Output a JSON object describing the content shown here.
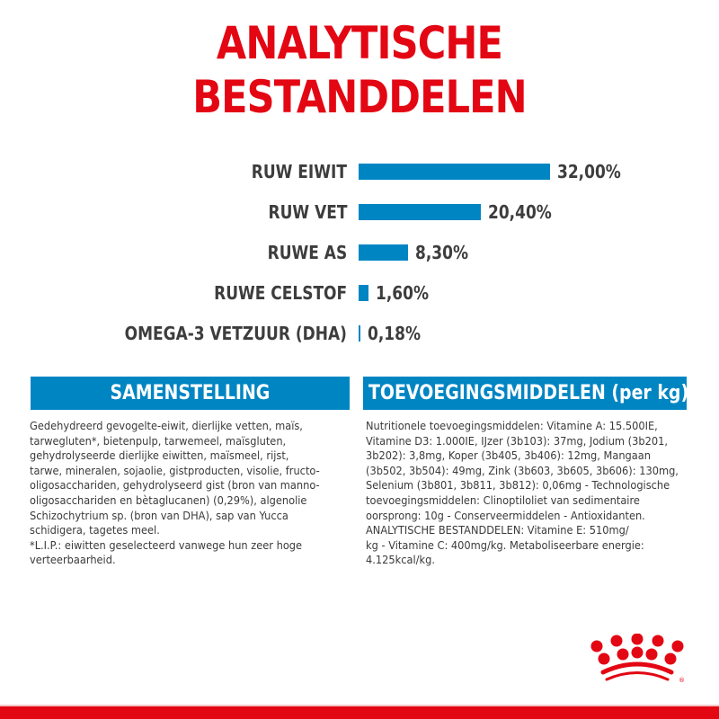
{
  "title": "ANALYTISCHE BESTANDDELEN",
  "colors": {
    "title_red": "#e30613",
    "bar_blue": "#0085c3",
    "header_blue": "#0085c3",
    "text_dark": "#3d3d3d",
    "footer_red": "#e30613"
  },
  "chart_data": {
    "type": "bar",
    "orientation": "horizontal",
    "title": "ANALYTISCHE BESTANDDELEN",
    "xlabel": "",
    "ylabel": "",
    "categories": [
      "RUW EIWIT",
      "RUW VET",
      "RUWE AS",
      "RUWE CELSTOF",
      "OMEGA-3 VETZUUR (DHA)"
    ],
    "values": [
      32.0,
      20.4,
      8.3,
      1.6,
      0.18
    ],
    "value_labels": [
      "32,00%",
      "20,40%",
      "8,30%",
      "1,60%",
      "0,18%"
    ],
    "unit": "%",
    "grid": false,
    "legend": null
  },
  "rows": [
    {
      "label": "RUW EIWIT",
      "value": "32,00%"
    },
    {
      "label": "RUW VET",
      "value": "20,40%"
    },
    {
      "label": "RUWE AS",
      "value": "8,30%"
    },
    {
      "label": "RUWE CELSTOF",
      "value": "1,60%"
    },
    {
      "label": "OMEGA-3 VETZUUR (DHA)",
      "value": "0,18%"
    }
  ],
  "samenstelling": {
    "header": "SAMENSTELLING",
    "text": "Gedehydreerd gevogelte-eiwit, dierlijke vetten, maïs,\ntarwegluten*, bietenpulp, tarwemeel, maïsgluten,\ngehydrolyseerde dierlijke eiwitten, maïsmeel, rijst,\ntarwe, mineralen, sojaolie, gistproducten, visolie, fructo-\noligosacchariden, gehydrolyseerd gist (bron van manno-\noligosacchariden en bètaglucanen) (0,29%), algenolie\nSchizochytrium sp. (bron van DHA), sap van Yucca\nschidigera, tagetes meel.\n*L.I.P.: eiwitten geselecteerd vanwege hun zeer hoge\nverteerbaarheid."
  },
  "toevoegingsmiddelen": {
    "header": "TOEVOEGINGSMIDDELEN (per kg)",
    "text": "Nutritionele toevoegingsmiddelen: Vitamine A: 15.500IE,\nVitamine D3: 1.000IE, IJzer (3b103): 37mg, Jodium (3b201,\n3b202): 3,8mg, Koper (3b405, 3b406): 12mg, Mangaan\n(3b502, 3b504): 49mg, Zink (3b603, 3b605, 3b606): 130mg,\nSelenium (3b801, 3b811, 3b812): 0,06mg - Technologische\ntoevoegingsmiddelen: Clinoptiloliet van sedimentaire\noorsprong: 10g - Conserveermiddelen - Antioxidanten.\nANALYTISCHE BESTANDDELEN: Vitamine E: 510mg/\nkg - Vitamine C: 400mg/kg. Metaboliseerbare energie:\n4.125kcal/kg."
  },
  "logo": {
    "icon": "royal-canin-crown-icon",
    "trademark": "®"
  }
}
